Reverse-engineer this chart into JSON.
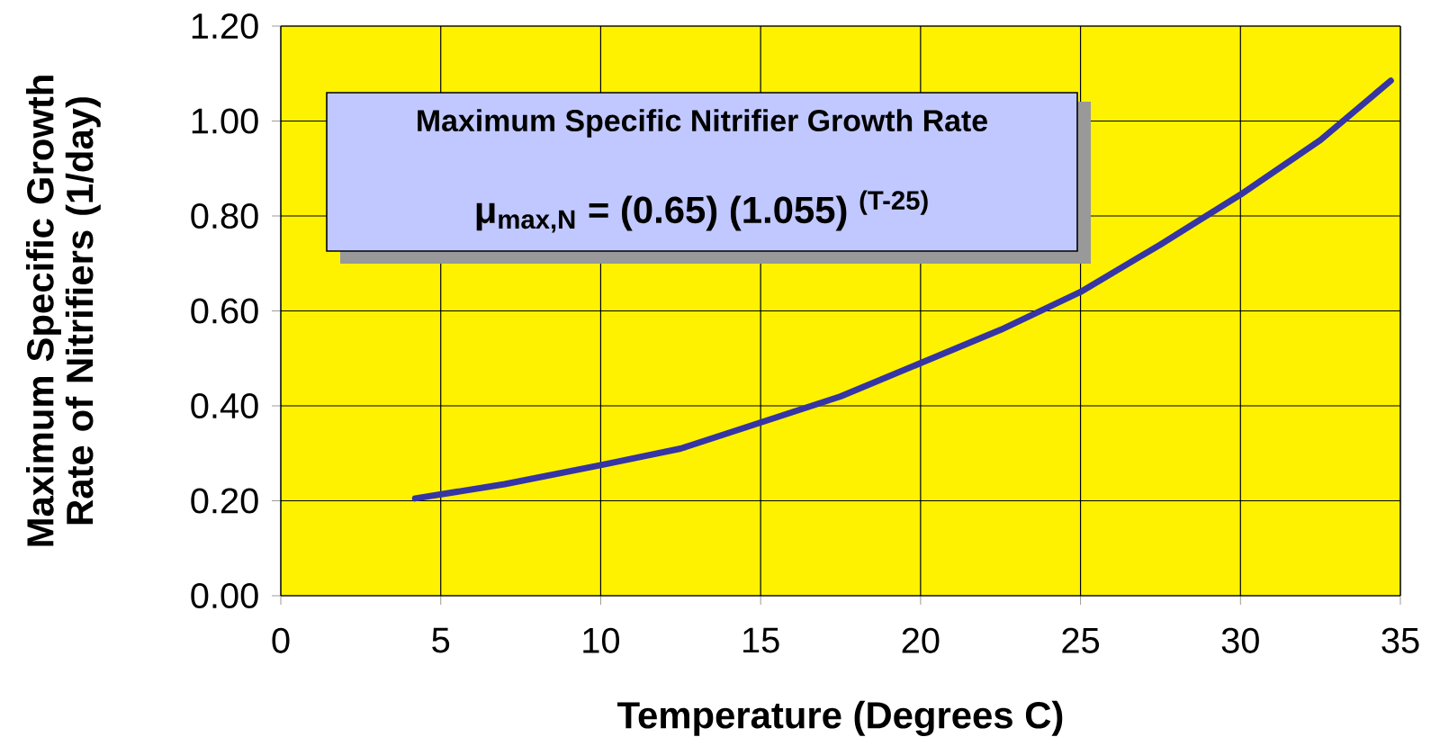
{
  "chart_data": {
    "type": "line",
    "xlabel": "Temperature (Degrees C)",
    "ylabel": "Maximum Specific Growth Rate of Nitrifiers (1/day)",
    "annotations": [
      "Maximum Specific Nitrifier Growth Rate",
      "μ$_{max,N}$ = (0.65) (1.055) $^{(T-25)}$"
    ],
    "x": [
      4.2,
      7,
      10,
      12.5,
      15,
      17.5,
      20,
      22.5,
      25,
      27.5,
      30,
      32.5,
      34.7
    ],
    "series": [
      {
        "color": "#3535a5",
        "values": [
          0.205,
          0.235,
          0.275,
          0.31,
          0.365,
          0.42,
          0.49,
          0.56,
          0.64,
          0.74,
          0.845,
          0.96,
          1.085
        ]
      }
    ],
    "xlim": [
      0,
      35
    ],
    "xticks": [
      0,
      5,
      10,
      15,
      20,
      25,
      30,
      35
    ],
    "ylim": [
      0,
      1.2
    ],
    "yticks": [
      {
        "value": 0,
        "label": "0.00"
      },
      {
        "value": 0.2,
        "label": "0.20"
      },
      {
        "value": 0.4,
        "label": "0.40"
      },
      {
        "value": 0.6,
        "label": "0.60"
      },
      {
        "value": 0.8,
        "label": "0.80"
      },
      {
        "value": 1.0,
        "label": "1.00"
      },
      {
        "value": 1.2,
        "label": "1.20"
      }
    ],
    "grid": true,
    "marker": "none",
    "line_style": "solid"
  }
}
